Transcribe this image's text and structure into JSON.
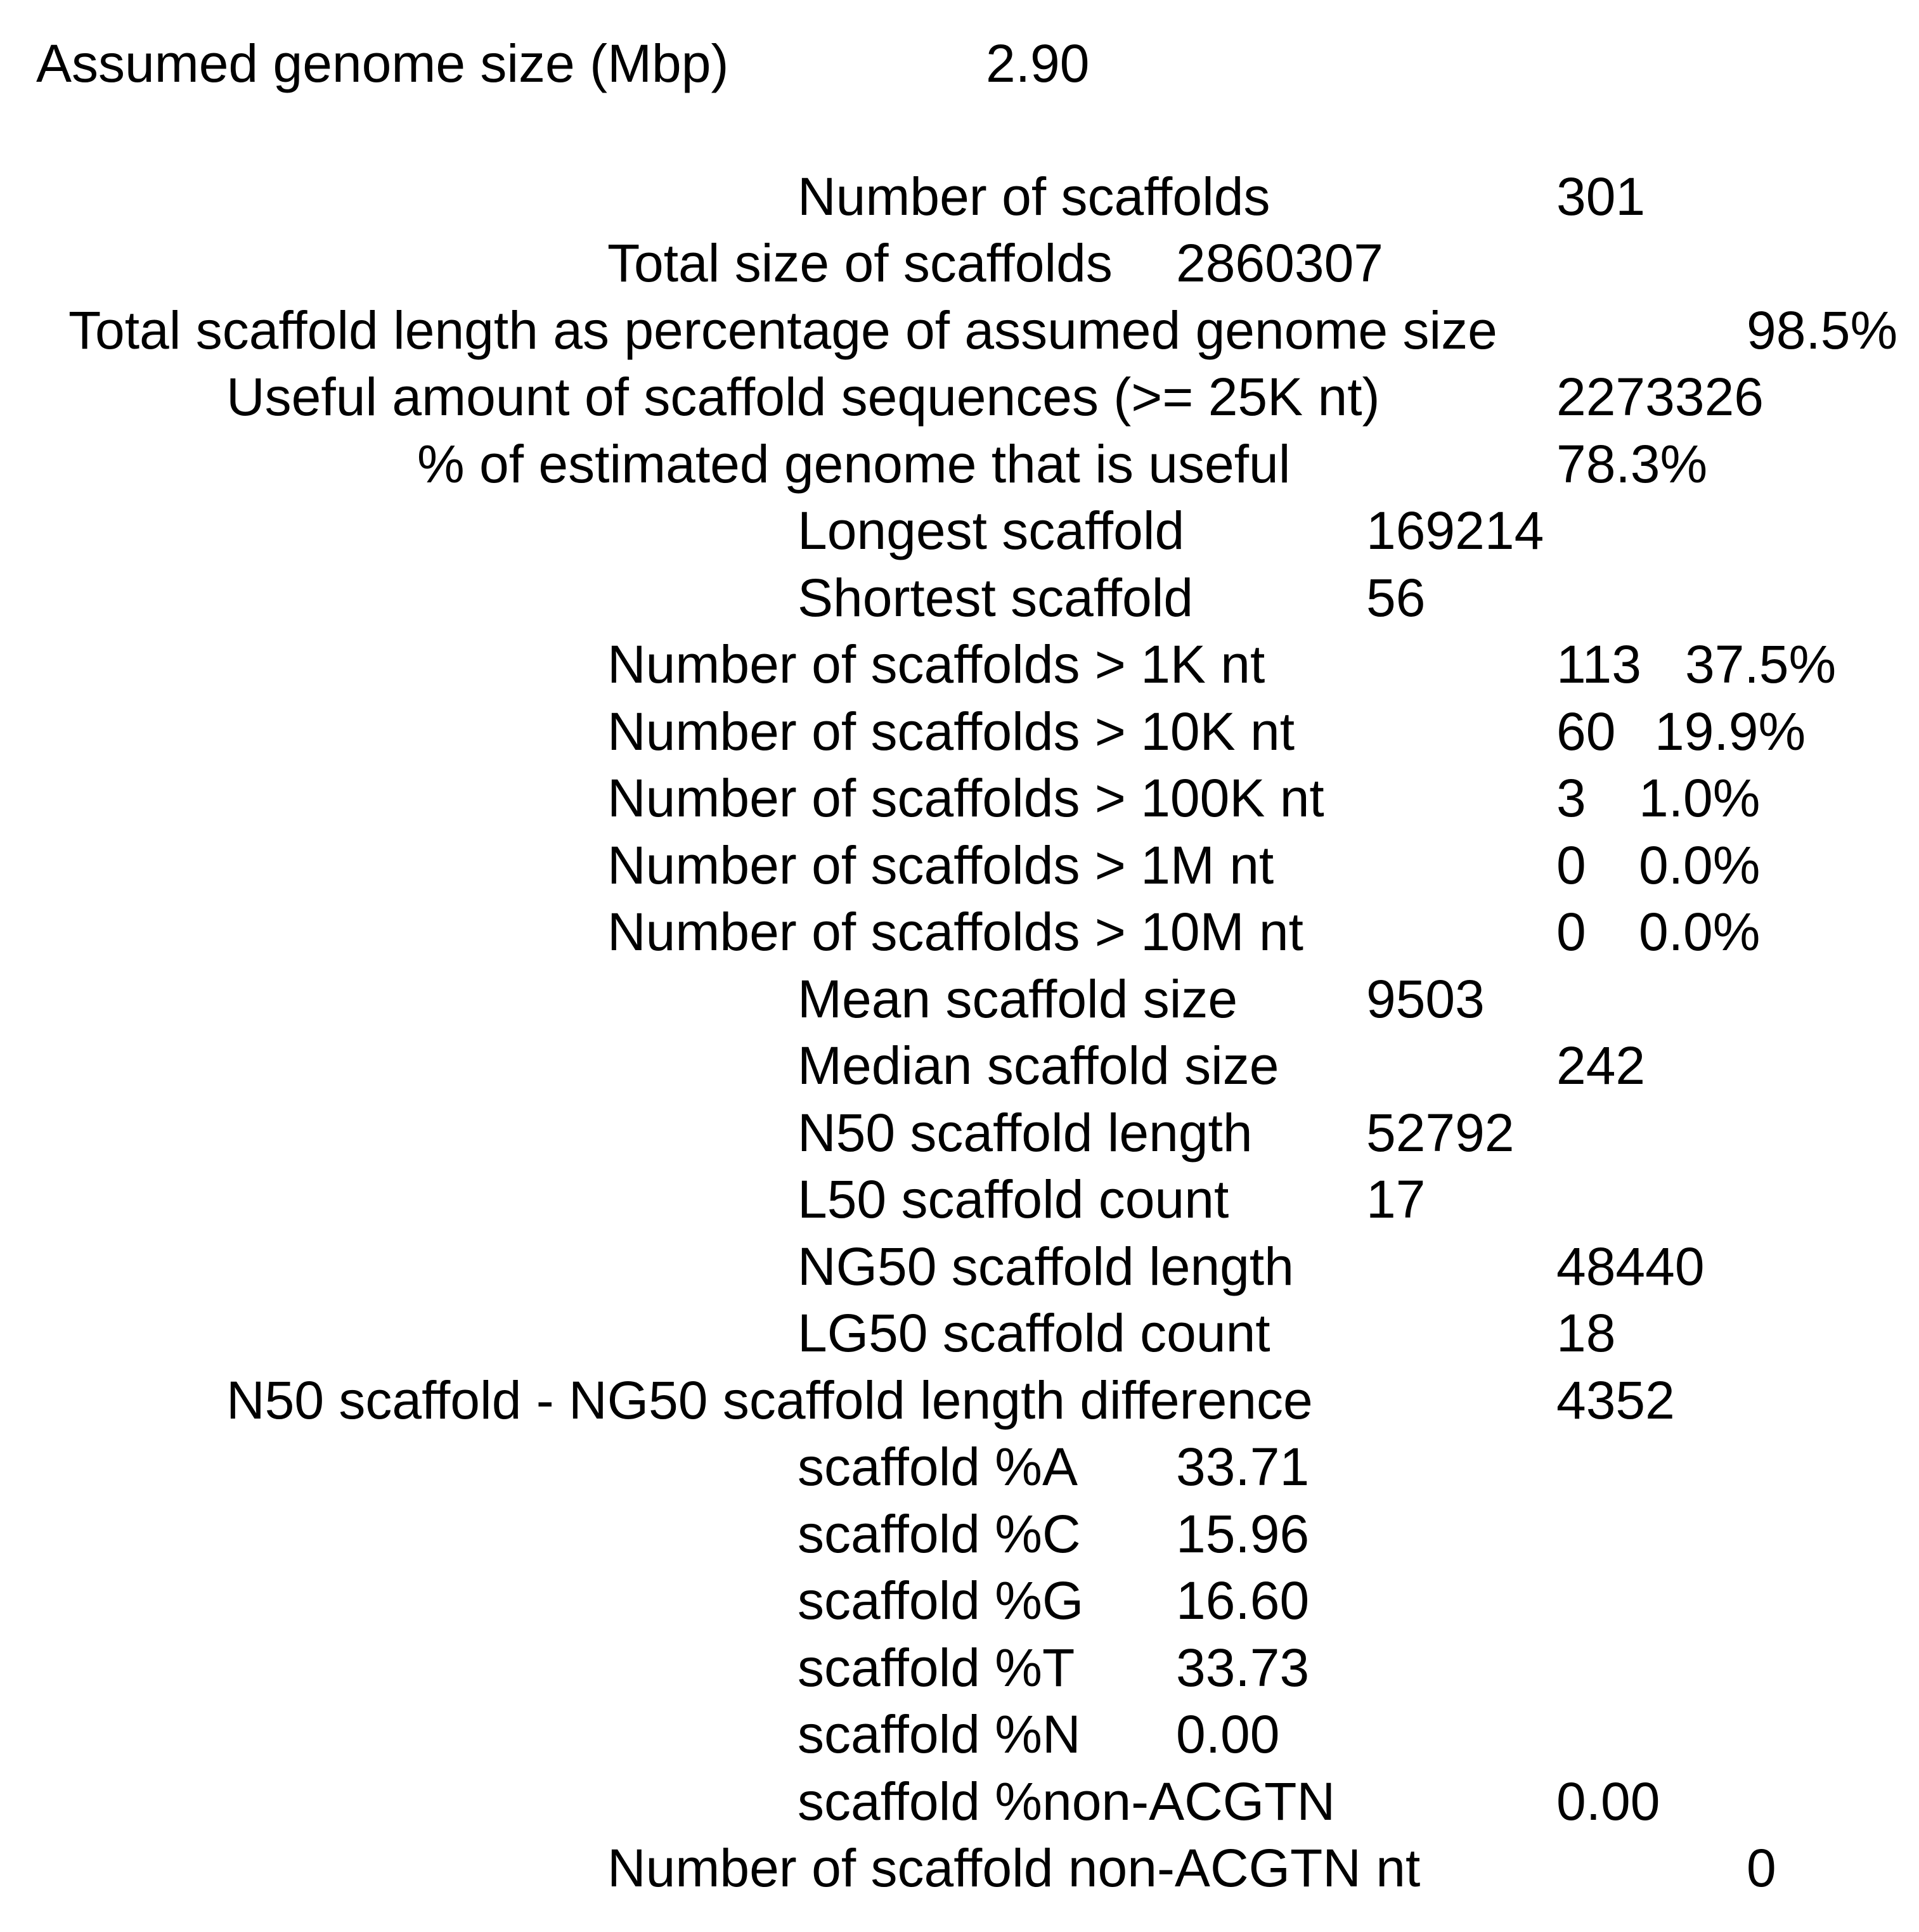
{
  "header": {
    "label": "Assumed genome size (Mbp)",
    "value": "2.90"
  },
  "rows": [
    {
      "label": "Number of scaffolds",
      "value": "301"
    },
    {
      "label": "Total size of scaffolds",
      "value": "2860307"
    },
    {
      "label": "Total scaffold length as percentage of assumed genome size",
      "value": "98.5%"
    },
    {
      "label": "Useful amount of scaffold sequences (>= 25K nt)",
      "value": "2273326"
    },
    {
      "label": "% of estimated genome that is useful",
      "value": "78.3%"
    },
    {
      "label": "Longest scaffold",
      "value": "169214"
    },
    {
      "label": "Shortest scaffold",
      "value": "56"
    },
    {
      "label": "Number of scaffolds > 1K nt",
      "value": "113",
      "pct": "37.5%"
    },
    {
      "label": "Number of scaffolds > 10K nt",
      "value": "60",
      "pct": "19.9%"
    },
    {
      "label": "Number of scaffolds > 100K nt",
      "value": "3",
      "pct": "1.0%"
    },
    {
      "label": "Number of scaffolds > 1M nt",
      "value": "0",
      "pct": "0.0%"
    },
    {
      "label": "Number of scaffolds > 10M nt",
      "value": "0",
      "pct": "0.0%"
    },
    {
      "label": "Mean scaffold size",
      "value": "9503"
    },
    {
      "label": "Median scaffold size",
      "value": "242"
    },
    {
      "label": "N50 scaffold length",
      "value": "52792"
    },
    {
      "label": "L50 scaffold count",
      "value": "17"
    },
    {
      "label": "NG50 scaffold length",
      "value": "48440"
    },
    {
      "label": "LG50 scaffold count",
      "value": "18"
    },
    {
      "label": "N50 scaffold - NG50 scaffold length difference",
      "value": "4352"
    },
    {
      "label": "scaffold %A",
      "value": "33.71"
    },
    {
      "label": "scaffold %C",
      "value": "15.96"
    },
    {
      "label": "scaffold %G",
      "value": "16.60"
    },
    {
      "label": "scaffold %T",
      "value": "33.73"
    },
    {
      "label": "scaffold %N",
      "value": "0.00"
    },
    {
      "label": "scaffold %non-ACGTN",
      "value": "0.00"
    },
    {
      "label": "Number of scaffold non-ACGTN nt",
      "value": "0"
    }
  ]
}
